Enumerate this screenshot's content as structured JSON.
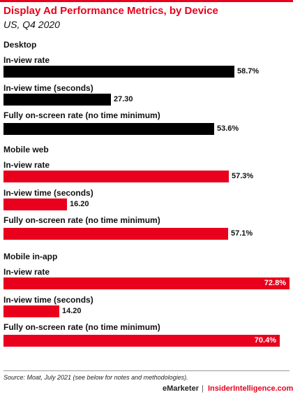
{
  "header": {
    "title": "Display Ad Performance Metrics, by Device",
    "subtitle": "US, Q4 2020"
  },
  "footer": {
    "source": "Source: Moat, July 2021 (see below for notes and methodologies).",
    "brand_emarketer": "eMarketer",
    "brand_separator": "|",
    "brand_insider": "InsiderIntelligence.com"
  },
  "colors": {
    "desktop": "#000000",
    "mobile": "#e8001c",
    "accent": "#e8001c"
  },
  "chart_data": {
    "type": "bar",
    "orientation": "horizontal",
    "title": "Display Ad Performance Metrics, by Device",
    "subtitle": "US, Q4 2020",
    "groups": [
      {
        "name": "Desktop",
        "color": "#000000",
        "metrics": [
          {
            "label": "In-view rate",
            "value": 58.7,
            "display": "58.7%"
          },
          {
            "label": "In-view time (seconds)",
            "value": 27.3,
            "display": "27.30"
          },
          {
            "label": "Fully on-screen rate (no time minimum)",
            "value": 53.6,
            "display": "53.6%"
          }
        ]
      },
      {
        "name": "Mobile web",
        "color": "#e8001c",
        "metrics": [
          {
            "label": "In-view rate",
            "value": 57.3,
            "display": "57.3%"
          },
          {
            "label": "In-view time (seconds)",
            "value": 16.2,
            "display": "16.20"
          },
          {
            "label": "Fully on-screen rate (no time minimum)",
            "value": 57.1,
            "display": "57.1%"
          }
        ]
      },
      {
        "name": "Mobile in-app",
        "color": "#e8001c",
        "metrics": [
          {
            "label": "In-view rate",
            "value": 72.8,
            "display": "72.8%"
          },
          {
            "label": "In-view time (seconds)",
            "value": 14.2,
            "display": "14.20"
          },
          {
            "label": "Fully on-screen rate (no time minimum)",
            "value": 70.4,
            "display": "70.4%"
          }
        ]
      }
    ]
  }
}
